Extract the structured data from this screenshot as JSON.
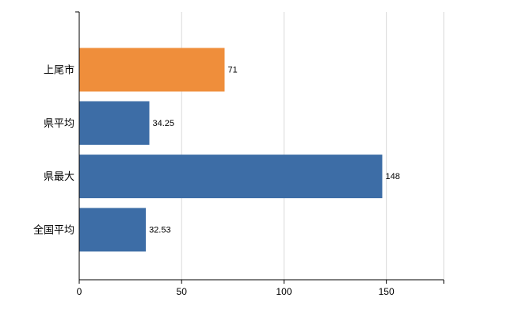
{
  "chart_data": {
    "type": "bar",
    "orientation": "horizontal",
    "title": "",
    "xlabel": "",
    "ylabel": "",
    "categories": [
      "上尾市",
      "県平均",
      "県最大",
      "全国平均"
    ],
    "values": [
      71,
      34.25,
      148,
      32.53
    ],
    "value_labels": [
      "71",
      "34.25",
      "148",
      "32.53"
    ],
    "series": [
      {
        "name": "values",
        "values": [
          71,
          34.25,
          148,
          32.53
        ],
        "colors": [
          "#ef8e3b",
          "#3d6da6",
          "#3d6da6",
          "#3d6da6"
        ]
      }
    ],
    "xticks": [
      0,
      50,
      100,
      150
    ],
    "xtick_labels": [
      "0",
      "50",
      "100",
      "150"
    ],
    "xlim": [
      0,
      178
    ],
    "grid": "vertical-gridlines-on",
    "legend": "none",
    "colors": {
      "highlight_bar": "#ef8e3b",
      "default_bar": "#3d6da6",
      "gridline": "#d9d9d9",
      "axis": "#000000",
      "label_text": "#000000",
      "background": "#ffffff"
    }
  }
}
